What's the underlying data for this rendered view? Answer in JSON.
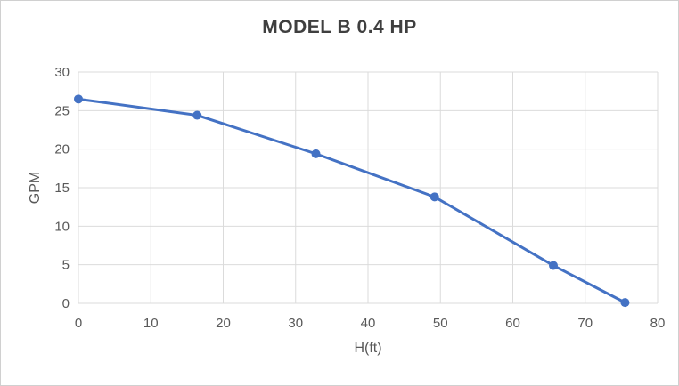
{
  "window": {
    "background": "#ffffff",
    "border_color": "#d0d0d0"
  },
  "chart_data": {
    "type": "line",
    "title": "MODEL B 0.4 HP",
    "xlabel": "H(ft)",
    "ylabel": "GPM",
    "x": [
      0,
      16.4,
      32.8,
      49.2,
      65.6,
      75.5
    ],
    "y": [
      26.5,
      24.4,
      19.4,
      13.8,
      4.9,
      0.1
    ],
    "xlim": [
      0,
      80
    ],
    "ylim": [
      0,
      30
    ],
    "x_ticks": [
      0,
      10,
      20,
      30,
      40,
      50,
      60,
      70,
      80
    ],
    "y_ticks": [
      0,
      5,
      10,
      15,
      20,
      25,
      30
    ],
    "grid": true,
    "legend": false,
    "marker": "circle",
    "line_width": 3,
    "marker_radius": 5,
    "colors": {
      "line": "#4472C4",
      "marker": "#4472C4",
      "gridline": "#DBDBDB",
      "tick_label": "#595959",
      "axis_label": "#595959",
      "title": "#3F3F3F"
    }
  }
}
